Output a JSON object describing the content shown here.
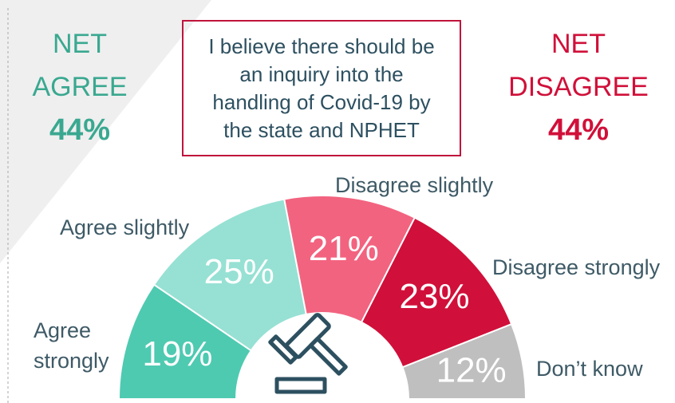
{
  "chart_data": {
    "type": "pie",
    "title": "I believe there should be an inquiry into the handling of Covid-19 by the state and NPHET",
    "categories": [
      "Agree strongly",
      "Agree slightly",
      "Disagree slightly",
      "Disagree strongly",
      "Don’t know"
    ],
    "values": [
      19,
      25,
      21,
      23,
      12
    ],
    "value_labels": [
      "19%",
      "25%",
      "21%",
      "23%",
      "12%"
    ],
    "colors": [
      "#4ecab1",
      "#96e1d4",
      "#f2637f",
      "#d0103a",
      "#bfbfbf"
    ],
    "annotations": [
      {
        "label": "NET AGREE",
        "value_label": "44%",
        "color": "#3aa890"
      },
      {
        "label": "NET DISAGREE",
        "value_label": "44%",
        "color": "#d0103a"
      }
    ]
  }
}
